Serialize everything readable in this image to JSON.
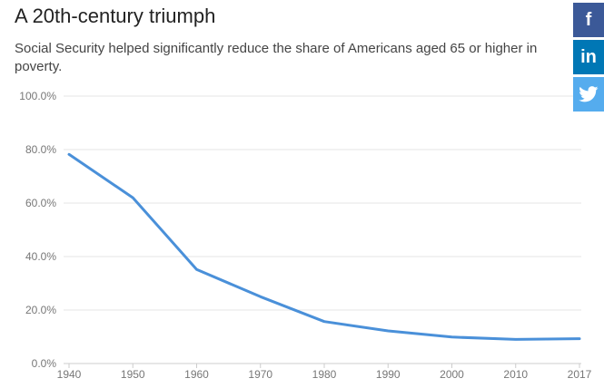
{
  "title": "A 20th-century triumph",
  "subtitle": "Social Security helped significantly reduce the share of Americans aged 65 or higher in poverty.",
  "share": {
    "facebook_icon": "facebook-icon",
    "linkedin_icon": "linkedin-icon",
    "twitter_icon": "twitter-icon",
    "facebook_glyph": "f",
    "linkedin_glyph": "in",
    "colors": {
      "facebook": "#3b5998",
      "linkedin": "#0077b5",
      "twitter": "#55acee"
    }
  },
  "chart_data": {
    "type": "line",
    "x": [
      1940,
      1950,
      1960,
      1970,
      1980,
      1990,
      2000,
      2010,
      2017
    ],
    "series": [
      {
        "values": [
          78.2,
          62.0,
          35.2,
          25.0,
          15.7,
          12.2,
          9.9,
          9.0,
          9.3
        ],
        "color": "#4a90d9"
      }
    ],
    "x_tick_labels": [
      "1940",
      "1950",
      "1960",
      "1970",
      "1980",
      "1990",
      "2000",
      "2010",
      "2017"
    ],
    "y_tick_labels": [
      "0.0%",
      "20.0%",
      "40.0%",
      "60.0%",
      "80.0%",
      "100.0%"
    ],
    "y_ticks": [
      0,
      20,
      40,
      60,
      80,
      100
    ],
    "xlim": [
      1940,
      2017
    ],
    "ylim": [
      0,
      100
    ],
    "xlabel": "",
    "ylabel": "",
    "grid": true,
    "legend": "none"
  }
}
